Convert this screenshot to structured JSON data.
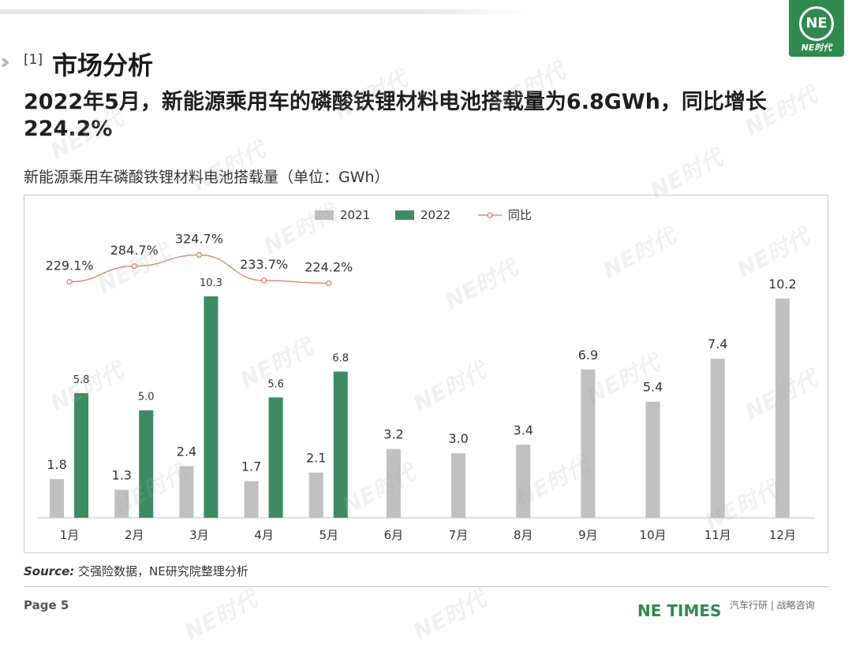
{
  "header": {
    "section_number": "[1]",
    "section_title": "市场分析",
    "headline": "2022年5月，新能源乘用车的磷酸铁锂材料电池搭载量为6.8GWh，同比增长224.2%",
    "logo_text": "NE时代",
    "logo_mark": "NE"
  },
  "chart_title": "新能源乘用车磷酸铁锂材料电池搭载量（单位：GWh）",
  "chart_data": {
    "type": "bar",
    "categories": [
      "1月",
      "2月",
      "3月",
      "4月",
      "5月",
      "6月",
      "7月",
      "8月",
      "9月",
      "10月",
      "11月",
      "12月"
    ],
    "series": [
      {
        "name": "2021",
        "color": "#c0c0c0",
        "values": [
          1.8,
          1.3,
          2.4,
          1.7,
          2.1,
          3.2,
          3.0,
          3.4,
          6.9,
          5.4,
          7.4,
          10.2
        ]
      },
      {
        "name": "2022",
        "color": "#3d8b63",
        "values": [
          5.8,
          5.0,
          10.3,
          5.6,
          6.8,
          null,
          null,
          null,
          null,
          null,
          null,
          null
        ]
      }
    ],
    "line_series": {
      "name": "同比",
      "color": "#e0906a",
      "values": [
        229.1,
        284.7,
        324.7,
        233.7,
        224.2
      ],
      "labels": [
        "229.1%",
        "284.7%",
        "324.7%",
        "233.7%",
        "224.2%"
      ]
    },
    "ylim": [
      0,
      11
    ],
    "legend": "top-center",
    "grid": false
  },
  "footer": {
    "source_label": "Source:",
    "source_text": " 交强险数据，NE研究院整理分析",
    "page": "Page 5",
    "brand": "NE TIMES",
    "wechat": "汽车行研 | 战略咨询"
  },
  "watermark": "NE时代"
}
